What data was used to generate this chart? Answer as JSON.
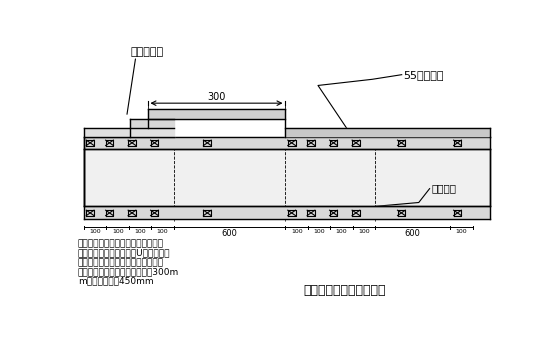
{
  "bg_color": "#ffffff",
  "line_color": "#000000",
  "label_dingxing": "定型钢模板",
  "label_55xing": "55型钢模板",
  "label_zhishui": "止水螺杆",
  "label_damoban": "大模板与小钢模连接构造",
  "note_line1": "注：大模板与小钢模连接处，定型作",
  "note_line2": "成与小钢模孔径对应，用U型卡满布连",
  "note_line3": "接固定，墙面支撑体系按照常规做法",
  "note_line4": "柱两侧第一排止水螺杆竖向间距300m",
  "note_line5": "m，其余间距为450mm",
  "dim_300": "300",
  "dim_600": "600",
  "dim_100": "100"
}
